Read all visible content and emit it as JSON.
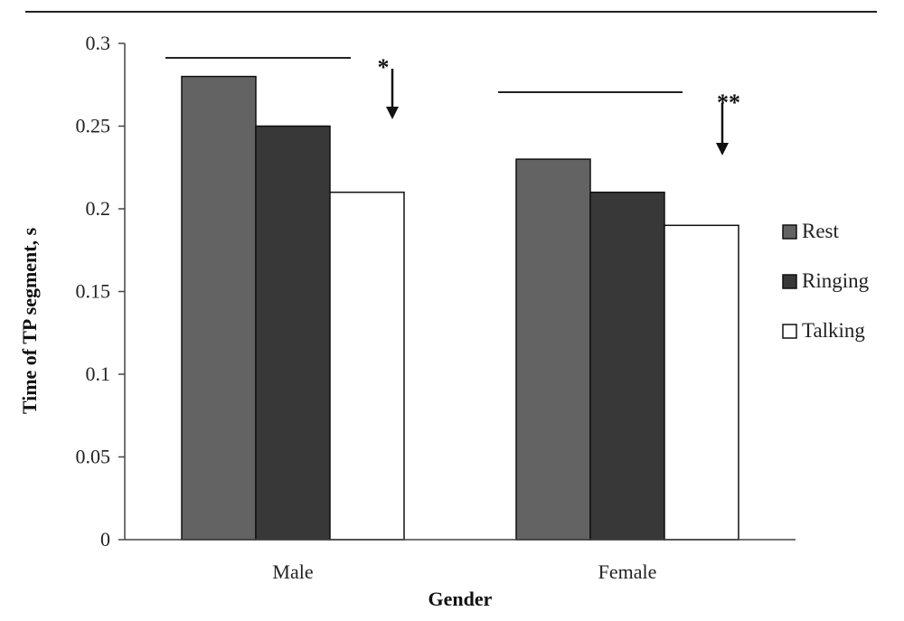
{
  "chart_data": {
    "type": "bar",
    "title": "",
    "xlabel": "Gender",
    "ylabel": "Time of TP segment, s",
    "categories": [
      "Male",
      "Female"
    ],
    "series": [
      {
        "name": "Rest",
        "values": [
          0.28,
          0.23
        ],
        "color": "#636363"
      },
      {
        "name": "Ringing",
        "values": [
          0.25,
          0.21
        ],
        "color": "#383838"
      },
      {
        "name": "Talking",
        "values": [
          0.21,
          0.19
        ],
        "color": "#ffffff"
      }
    ],
    "ylim": [
      0,
      0.3
    ],
    "yticks": [
      0,
      0.05,
      0.1,
      0.15,
      0.2,
      0.25,
      0.3
    ],
    "ytick_labels": [
      "0",
      "0.05",
      "0.1",
      "0.15",
      "0.2",
      "0.25",
      "0.3"
    ],
    "grid": false,
    "legend_position": "right",
    "annotations": [
      {
        "category": "Male",
        "text": "*"
      },
      {
        "category": "Female",
        "text": "**"
      }
    ]
  }
}
